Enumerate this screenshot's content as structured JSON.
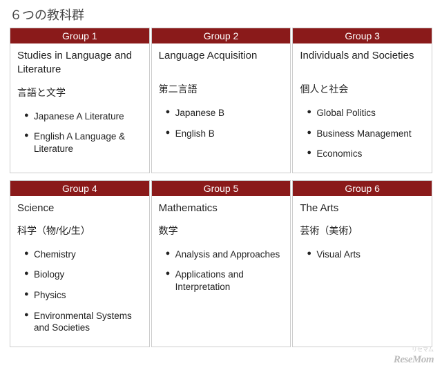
{
  "page_title": "６つの教科群",
  "header_color": "#8a1a1a",
  "groups": [
    {
      "header": "Group 1",
      "title_en": "Studies in Language and Literature",
      "title_jp": "言語と文学",
      "items": [
        "Japanese A Literature",
        "English A Language & Literature"
      ]
    },
    {
      "header": "Group 2",
      "title_en": "Language Acquisition",
      "title_jp": "第二言語",
      "items": [
        "Japanese B",
        "English B"
      ]
    },
    {
      "header": "Group 3",
      "title_en": "Individuals and Societies",
      "title_jp": "個人と社会",
      "items": [
        "Global Politics",
        "Business Management",
        "Economics"
      ]
    },
    {
      "header": "Group 4",
      "title_en": "Science",
      "title_jp": "科学（物/化/生）",
      "items": [
        "Chemistry",
        "Biology",
        "Physics",
        "Environmental Systems and Societies"
      ]
    },
    {
      "header": "Group 5",
      "title_en": "Mathematics",
      "title_jp": "数学",
      "items": [
        "Analysis and Approaches",
        "Applications and Interpretation"
      ]
    },
    {
      "header": "Group 6",
      "title_en": "The Arts",
      "title_jp": "芸術（美術）",
      "items": [
        "Visual Arts"
      ]
    }
  ],
  "watermark_sub": "リセマム",
  "watermark": "ReseMom"
}
